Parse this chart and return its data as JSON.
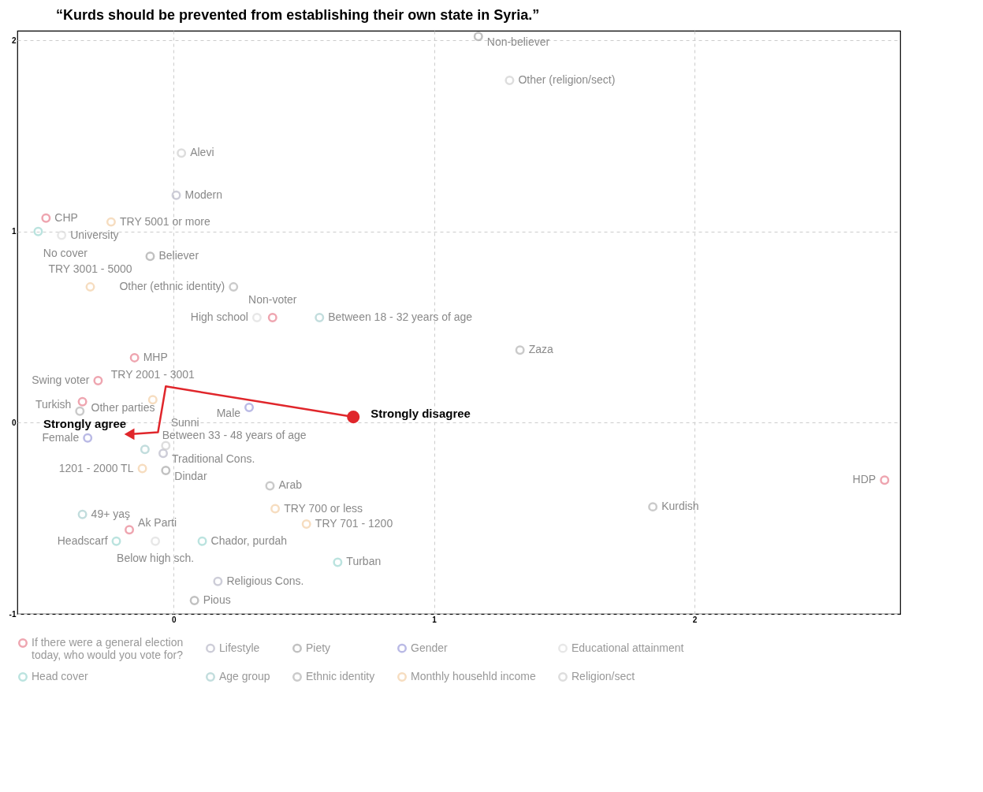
{
  "chart_data": {
    "type": "scatter",
    "title": "“Kurds should be prevented from establishing their own state in Syria.”",
    "xlim": [
      -0.6,
      2.79
    ],
    "ylim": [
      -1,
      2.05
    ],
    "xticks": [
      0,
      1,
      2
    ],
    "yticks": [
      -1,
      0,
      1,
      2
    ],
    "grid": true,
    "legend": "bottom",
    "marker": "circle",
    "series": [
      {
        "name": "If there were a general election today, who would you vote for?",
        "color": "#e8808f",
        "x": [
          -0.49,
          0.38,
          -0.15,
          -0.29,
          -0.35,
          -0.17,
          2.73
        ],
        "values": [
          1.07,
          0.55,
          0.34,
          0.22,
          0.11,
          -0.56,
          -0.3
        ],
        "value_labels": [
          "CHP",
          "Non-voter",
          "MHP",
          "Swing voter",
          "Other parties",
          "Ak Parti",
          "HDP"
        ]
      },
      {
        "name": "Lifestyle",
        "color": "#b9b9c8",
        "x": [
          0.01,
          -0.04,
          0.17
        ],
        "values": [
          1.19,
          -0.16,
          -0.83
        ],
        "value_labels": [
          "Modern",
          "Traditional Cons.",
          "Religious Cons."
        ]
      },
      {
        "name": "Piety",
        "color": "#a8a8a8",
        "x": [
          1.17,
          -0.09,
          -0.03,
          0.08
        ],
        "values": [
          2.02,
          0.87,
          -0.25,
          -0.93
        ],
        "value_labels": [
          "Non-believer",
          "Believer",
          "Dindar",
          "Pious"
        ]
      },
      {
        "name": "Gender",
        "color": "#9d9ddb",
        "x": [
          0.29,
          -0.33
        ],
        "values": [
          0.08,
          -0.08
        ],
        "value_labels": [
          "Male",
          "Female"
        ]
      },
      {
        "name": "Educational attainment",
        "color": "#dedede",
        "x": [
          -0.43,
          0.32,
          -0.07
        ],
        "values": [
          0.98,
          0.55,
          -0.62
        ],
        "value_labels": [
          "University",
          "High school",
          "Below high sch."
        ]
      },
      {
        "name": "Head cover",
        "color": "#9fd8d2",
        "x": [
          -0.52,
          -0.22,
          0.11,
          0.63
        ],
        "values": [
          1.0,
          -0.62,
          -0.62,
          -0.73
        ],
        "value_labels": [
          "No cover",
          "Headscarf",
          "Chador, purdah",
          "Turban"
        ]
      },
      {
        "name": "Age group",
        "color": "#a9cfcf",
        "x": [
          0.56,
          -0.11,
          -0.35
        ],
        "values": [
          0.55,
          -0.14,
          -0.48
        ],
        "value_labels": [
          "Between 18 - 32 years of age",
          "Between 33 - 48 years of age",
          "49+ yaş"
        ]
      },
      {
        "name": "Ethnic identity",
        "color": "#b4b4b4",
        "x": [
          0.23,
          1.33,
          -0.36,
          0.37,
          1.84
        ],
        "values": [
          0.71,
          0.38,
          0.06,
          -0.33,
          -0.44
        ],
        "value_labels": [
          "Other (ethnic identity)",
          "Zaza",
          "Turkish",
          "Arab",
          "Kurdish"
        ]
      },
      {
        "name": "Monthly househld income",
        "color": "#f3cfa6",
        "x": [
          -0.24,
          -0.32,
          -0.08,
          -0.12,
          0.39,
          0.51
        ],
        "values": [
          1.05,
          0.71,
          0.12,
          -0.24,
          -0.45,
          -0.53
        ],
        "value_labels": [
          "TRY 5001 or more",
          "TRY 3001 - 5000",
          "TRY 2001 - 3001",
          "1201 - 2000 TL",
          "TRY 700 or less",
          "TRY 701 - 1200"
        ]
      },
      {
        "name": "Religion/sect",
        "color": "#cfcfcf",
        "x": [
          1.29,
          0.03,
          -0.03
        ],
        "values": [
          1.79,
          1.41,
          -0.12
        ],
        "value_labels": [
          "Other (religion/sect)",
          "Alevi",
          "Sunni"
        ]
      },
      {
        "type": "line",
        "color": "#e0262b",
        "x": [
          0.69,
          -0.03,
          -0.06,
          -0.17
        ],
        "values": [
          0.03,
          0.19,
          -0.05,
          -0.06
        ],
        "value_labels": [
          "Strongly disagree",
          null,
          null,
          "Strongly agree"
        ]
      }
    ]
  }
}
